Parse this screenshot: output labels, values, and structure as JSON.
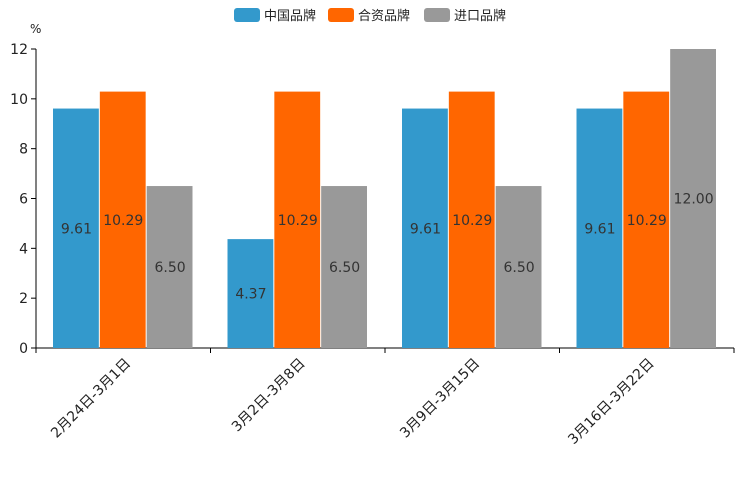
{
  "chart_data": {
    "type": "bar",
    "unit": "%",
    "categories": [
      "2月24日-3月1日",
      "3月2日-3月8日",
      "3月9日-3月15日",
      "3月16日-3月22日"
    ],
    "series": [
      {
        "name": "中国品牌",
        "color": "#3399cc",
        "values": [
          9.61,
          4.37,
          9.61,
          9.61
        ],
        "labels": [
          "9.61",
          "4.37",
          "9.61",
          "9.61"
        ]
      },
      {
        "name": "合资品牌",
        "color": "#ff6600",
        "values": [
          10.29,
          10.29,
          10.29,
          10.29
        ],
        "labels": [
          "10.29",
          "10.29",
          "10.29",
          "10.29"
        ]
      },
      {
        "name": "进口品牌",
        "color": "#999999",
        "values": [
          6.5,
          6.5,
          6.5,
          12.0
        ],
        "labels": [
          "6.50",
          "6.50",
          "6.50",
          "12.00"
        ]
      }
    ],
    "y_ticks": [
      0,
      2,
      4,
      6,
      8,
      10,
      12
    ],
    "ylim": [
      0,
      12
    ],
    "legend_position": "top-center",
    "grid": false
  }
}
